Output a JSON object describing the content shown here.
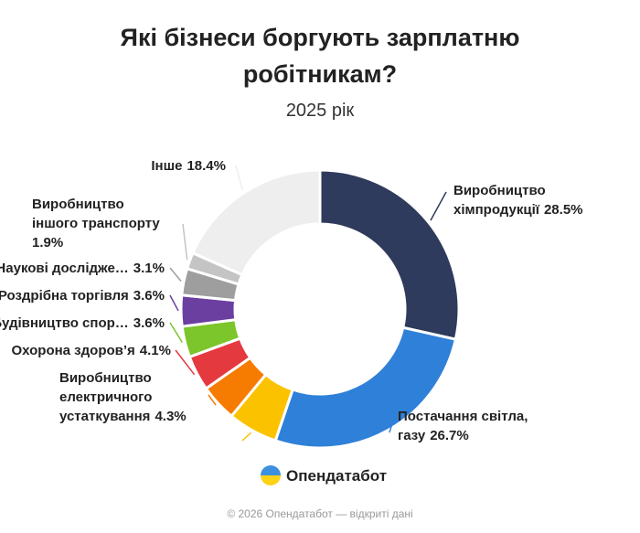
{
  "chart_data": {
    "type": "donut",
    "title": [
      "Які бізнеси боргують зарплатню",
      "робітникам?"
    ],
    "subtitle": "2025 рік",
    "categories": [
      [
        "Виробництво",
        "хімпродукції"
      ],
      [
        "Постачання світла,",
        "газу"
      ],
      null,
      [
        "Виробництво",
        "електричного",
        "устаткування"
      ],
      [
        "Охорона здоров’я"
      ],
      [
        "Будівництво спор…"
      ],
      [
        "Роздрібна торгівля"
      ],
      [
        "Наукові дослідже…"
      ],
      [
        "Виробництво",
        "іншого транспорту"
      ],
      [
        "Інше"
      ]
    ],
    "values": [
      28.5,
      26.7,
      5.8,
      4.3,
      4.1,
      3.6,
      3.6,
      3.1,
      1.9,
      18.4
    ],
    "value_labels": [
      "28.5%",
      "26.7%",
      null,
      "4.3%",
      "4.1%",
      "3.6%",
      "3.6%",
      "3.1%",
      "1.9%",
      "18.4%"
    ],
    "colors": [
      "#2e3b5c",
      "#2f80d8",
      "#fbc200",
      "#f57c00",
      "#e53940",
      "#7cc52a",
      "#6b3fa0",
      "#9e9e9e",
      "#c4c4c4",
      "#eeeeee"
    ]
  },
  "logo": "Опендатабот",
  "footer": "© 2026 Опендатабот — відкриті дані"
}
